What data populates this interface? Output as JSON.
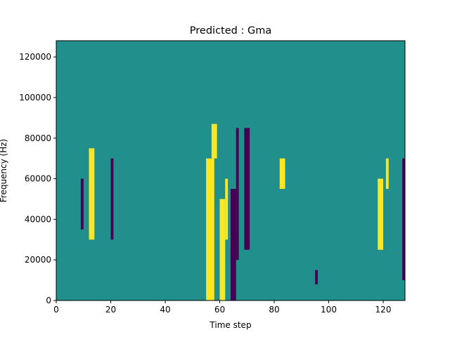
{
  "chart_data": {
    "type": "heatmap",
    "title": "Predicted : Gma",
    "xlabel": "Time step",
    "ylabel": "Frequency (Hz)",
    "xlim": [
      0,
      128
    ],
    "ylim": [
      0,
      128000
    ],
    "x_ticks": [
      0,
      20,
      40,
      60,
      80,
      100,
      120
    ],
    "y_ticks": [
      0,
      20000,
      40000,
      60000,
      80000,
      100000,
      120000
    ],
    "y_tick_labels": [
      "0",
      "20000",
      "40000",
      "60000",
      "80000",
      "100000",
      "120000"
    ],
    "colormap": {
      "low": "#440154",
      "mid": "#21908c",
      "high": "#fde725"
    },
    "background_value": "mid",
    "grid": false,
    "regions": [
      {
        "x": [
          55,
          58
        ],
        "y": [
          0,
          70000
        ],
        "value": "high"
      },
      {
        "x": [
          57,
          59
        ],
        "y": [
          70000,
          87000
        ],
        "value": "high"
      },
      {
        "x": [
          64,
          66
        ],
        "y": [
          0,
          55000
        ],
        "value": "low"
      },
      {
        "x": [
          66,
          67
        ],
        "y": [
          20000,
          85000
        ],
        "value": "low"
      },
      {
        "x": [
          69,
          71
        ],
        "y": [
          25000,
          85000
        ],
        "value": "low"
      },
      {
        "x": [
          60,
          62
        ],
        "y": [
          0,
          50000
        ],
        "value": "high"
      },
      {
        "x": [
          62,
          63
        ],
        "y": [
          30000,
          60000
        ],
        "value": "high"
      },
      {
        "x": [
          12,
          14
        ],
        "y": [
          30000,
          75000
        ],
        "value": "high"
      },
      {
        "x": [
          118,
          120
        ],
        "y": [
          25000,
          60000
        ],
        "value": "high"
      },
      {
        "x": [
          121,
          122
        ],
        "y": [
          55000,
          70000
        ],
        "value": "high"
      },
      {
        "x": [
          127,
          128
        ],
        "y": [
          10000,
          70000
        ],
        "value": "low"
      },
      {
        "x": [
          82,
          84
        ],
        "y": [
          55000,
          70000
        ],
        "value": "high"
      },
      {
        "x": [
          95,
          96
        ],
        "y": [
          8000,
          15000
        ],
        "value": "low"
      },
      {
        "x": [
          20,
          21
        ],
        "y": [
          30000,
          70000
        ],
        "value": "low"
      },
      {
        "x": [
          9,
          10
        ],
        "y": [
          35000,
          60000
        ],
        "value": "low"
      }
    ]
  }
}
